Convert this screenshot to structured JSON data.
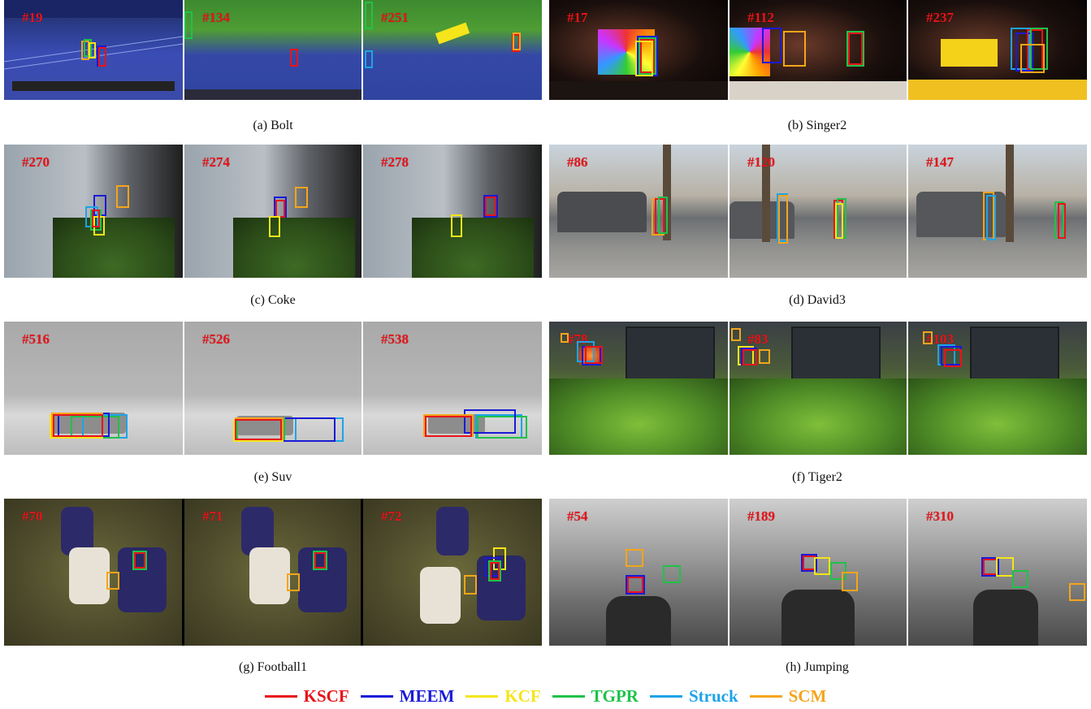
{
  "colors": {
    "KSCF": "#e8141a",
    "MEEM": "#1a1ad6",
    "KCF": "#f5e51a",
    "TGPR": "#1fc24a",
    "Struck": "#1ea3e8",
    "SCM": "#f5a51a"
  },
  "legend": [
    {
      "name": "KSCF",
      "color": "#e8141a"
    },
    {
      "name": "MEEM",
      "color": "#1a1ad6"
    },
    {
      "name": "KCF",
      "color": "#f5e51a"
    },
    {
      "name": "TGPR",
      "color": "#1fc24a"
    },
    {
      "name": "Struck",
      "color": "#1ea3e8"
    },
    {
      "name": "SCM",
      "color": "#f5a51a"
    }
  ],
  "panels": [
    {
      "id": "a",
      "caption": "(a)  Bolt",
      "frames": [
        "#19",
        "#134",
        "#251"
      ]
    },
    {
      "id": "b",
      "caption": "(b)  Singer2",
      "frames": [
        "#17",
        "#112",
        "#237"
      ]
    },
    {
      "id": "c",
      "caption": "(c)  Coke",
      "frames": [
        "#270",
        "#274",
        "#278"
      ]
    },
    {
      "id": "d",
      "caption": "(d)  David3",
      "frames": [
        "#86",
        "#120",
        "#147"
      ]
    },
    {
      "id": "e",
      "caption": "(e)  Suv",
      "frames": [
        "#516",
        "#526",
        "#538"
      ]
    },
    {
      "id": "f",
      "caption": "(f)  Tiger2",
      "frames": [
        "#78",
        "#83",
        "#103"
      ]
    },
    {
      "id": "g",
      "caption": "(g)  Football1",
      "frames": [
        "#70",
        "#71",
        "#72"
      ]
    },
    {
      "id": "h",
      "caption": "(h)  Jumping",
      "frames": [
        "#54",
        "#189",
        "#310"
      ]
    }
  ]
}
